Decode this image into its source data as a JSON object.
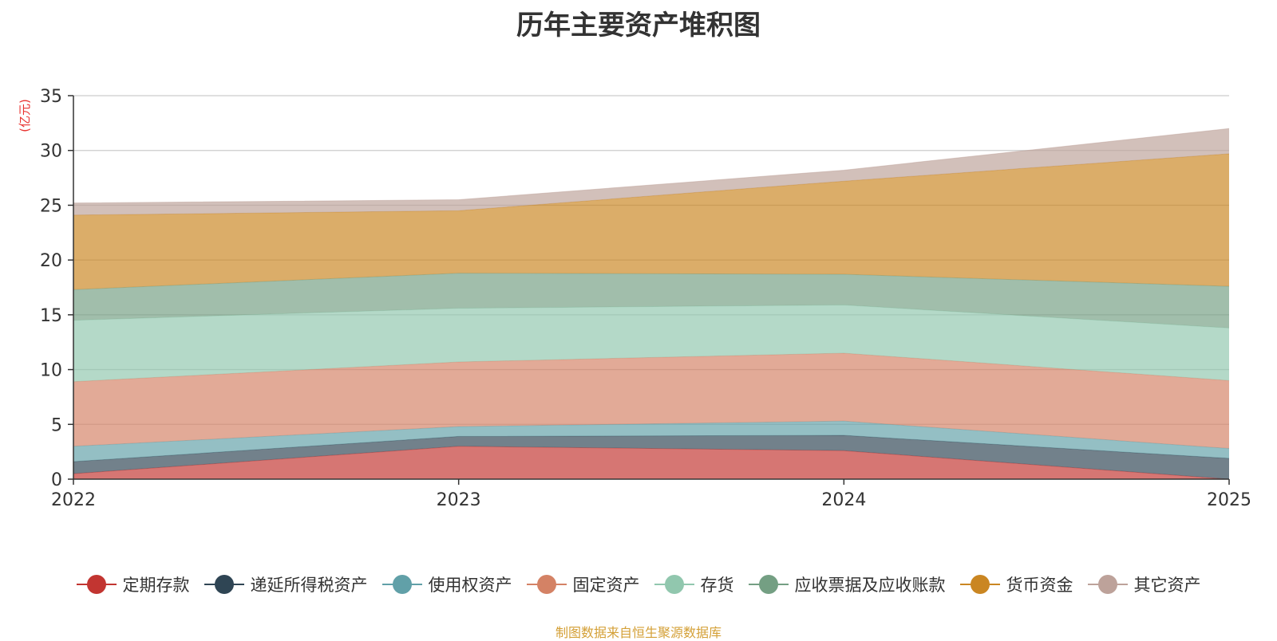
{
  "chart_data": {
    "type": "area",
    "stacked": true,
    "title": "历年主要资产堆积图",
    "ylabel": "(亿元)",
    "x": [
      "2022",
      "2023",
      "2024",
      "2025"
    ],
    "ylim": [
      0,
      35
    ],
    "yticks": [
      0,
      5,
      10,
      15,
      20,
      25,
      30,
      35
    ],
    "grid": true,
    "legend_position": "bottom",
    "series": [
      {
        "name": "定期存款",
        "values": [
          0.5,
          3.0,
          2.6,
          0.0
        ],
        "color": "#c23531"
      },
      {
        "name": "递延所得税资产",
        "values": [
          1.1,
          0.9,
          1.4,
          1.9
        ],
        "color": "#2f4554"
      },
      {
        "name": "使用权资产",
        "values": [
          1.4,
          0.9,
          1.3,
          0.9
        ],
        "color": "#61a0a8"
      },
      {
        "name": "固定资产",
        "values": [
          5.9,
          5.9,
          6.2,
          6.2
        ],
        "color": "#d48265"
      },
      {
        "name": "存货",
        "values": [
          5.6,
          4.9,
          4.4,
          4.8
        ],
        "color": "#91c7ae"
      },
      {
        "name": "应收票据及应收账款",
        "values": [
          2.8,
          3.2,
          2.8,
          3.8
        ],
        "color": "#749f83"
      },
      {
        "name": "货币资金",
        "values": [
          6.8,
          5.7,
          8.5,
          12.1
        ],
        "color": "#ca8622"
      },
      {
        "name": "其它资产",
        "values": [
          1.1,
          1.0,
          1.0,
          2.3
        ],
        "color": "#bda29a"
      }
    ]
  },
  "footer": {
    "source": "制图数据来自恒生聚源数据库"
  }
}
